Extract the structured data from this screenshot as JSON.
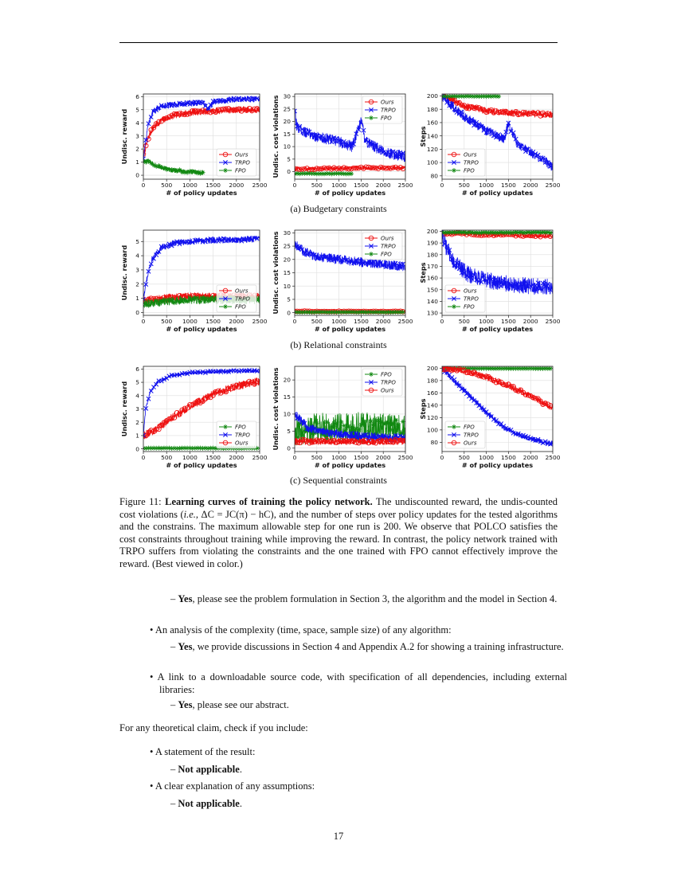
{
  "colors": {
    "ours": "#ee1111",
    "trpo": "#1111ee",
    "fpo": "#118811"
  },
  "figure": {
    "subcaptions": [
      "(a) Budgetary constraints",
      "(b) Relational constraints",
      "(c) Sequential constraints"
    ],
    "caption": {
      "label": "Figure 11:",
      "title": "Learning curves of training the policy network.",
      "text_1": " The undiscounted reward, the undis-counted cost violations (",
      "ie": "i.e.",
      "formula": ", ΔC = JC(π) − hC",
      "text_2": "), and the number of steps over policy updates for the tested algorithms and the constrains. The maximum allowable step for one run is 200. We observe that POLCO satisfies the cost constraints throughout training while improving the reward. In contrast, the policy network trained with TRPO suffers from violating the constraints and the one trained with FPO cannot effectively improve the reward. (Best viewed in color.)"
    }
  },
  "chart_data": [
    {
      "id": "a-reward",
      "type": "line",
      "ylabel": "Undisc. reward",
      "xlabel": "# of policy updates",
      "xlim": [
        0,
        2500
      ],
      "ylim": [
        -0.3,
        6.2
      ],
      "yticks": [
        0,
        1,
        2,
        3,
        4,
        5,
        6
      ],
      "xticks": [
        0,
        500,
        1000,
        1500,
        2000,
        2500
      ],
      "grid": true,
      "legend_position": "lower-right",
      "legend": [
        "Ours",
        "TRPO",
        "FPO"
      ],
      "series": [
        {
          "name": "Ours",
          "color": "ours",
          "marker": "circle",
          "x": [
            0,
            100,
            200,
            400,
            700,
            1000,
            1500,
            2000,
            2500
          ],
          "y": [
            1.5,
            2.8,
            3.6,
            4.2,
            4.6,
            4.8,
            4.9,
            5.0,
            5.0
          ],
          "noise": 0.25
        },
        {
          "name": "TRPO",
          "color": "trpo",
          "marker": "x",
          "x": [
            0,
            100,
            200,
            400,
            700,
            1000,
            1300,
            1400,
            1500,
            2000,
            2500
          ],
          "y": [
            1.2,
            3.8,
            4.8,
            5.3,
            5.4,
            5.5,
            5.5,
            5.0,
            5.6,
            5.8,
            5.8
          ],
          "noise": 0.22
        },
        {
          "name": "FPO",
          "color": "fpo",
          "marker": "star",
          "x": [
            0,
            100,
            300,
            600,
            900,
            1300
          ],
          "y": [
            1.0,
            1.1,
            0.7,
            0.4,
            0.3,
            0.2
          ],
          "noise": 0.18
        }
      ]
    },
    {
      "id": "a-cost",
      "type": "line",
      "ylabel": "Undisc. cost violations",
      "xlabel": "# of policy updates",
      "xlim": [
        0,
        2500
      ],
      "ylim": [
        -3,
        31
      ],
      "yticks": [
        0,
        5,
        10,
        15,
        20,
        25,
        30
      ],
      "xticks": [
        0,
        500,
        1000,
        1500,
        2000,
        2500
      ],
      "grid": true,
      "legend_position": "upper-right",
      "legend": [
        "Ours",
        "TRPO",
        "FPO"
      ],
      "series": [
        {
          "name": "Ours",
          "color": "ours",
          "marker": "circle",
          "x": [
            0,
            500,
            1000,
            1500,
            2000,
            2500
          ],
          "y": [
            1.0,
            1.2,
            1.3,
            1.5,
            1.5,
            1.5
          ],
          "noise": 0.7
        },
        {
          "name": "TRPO",
          "color": "trpo",
          "marker": "x",
          "x": [
            0,
            50,
            200,
            500,
            1000,
            1300,
            1500,
            1600,
            2000,
            2500
          ],
          "y": [
            24,
            18,
            16,
            14,
            12,
            10,
            20,
            12,
            8,
            6
          ],
          "noise": 2.2
        },
        {
          "name": "FPO",
          "color": "fpo",
          "marker": "star",
          "x": [
            0,
            500,
            1000,
            1300
          ],
          "y": [
            -0.8,
            -0.8,
            -0.8,
            -0.8
          ],
          "noise": 0.2
        }
      ]
    },
    {
      "id": "a-steps",
      "type": "line",
      "ylabel": "Steps",
      "xlabel": "# of policy updates",
      "xlim": [
        0,
        2500
      ],
      "ylim": [
        75,
        203
      ],
      "yticks": [
        80,
        100,
        120,
        140,
        160,
        180,
        200
      ],
      "xticks": [
        0,
        500,
        1000,
        1500,
        2000,
        2500
      ],
      "grid": true,
      "legend_position": "lower-left",
      "legend": [
        "Ours",
        "TRPO",
        "FPO"
      ],
      "series": [
        {
          "name": "Ours",
          "color": "ours",
          "marker": "circle",
          "x": [
            0,
            200,
            500,
            1000,
            1500,
            2000,
            2500
          ],
          "y": [
            200,
            195,
            185,
            178,
            175,
            173,
            172
          ],
          "noise": 5
        },
        {
          "name": "TRPO",
          "color": "trpo",
          "marker": "x",
          "x": [
            0,
            300,
            700,
            1000,
            1400,
            1500,
            1700,
            2000,
            2300,
            2500
          ],
          "y": [
            200,
            180,
            160,
            148,
            135,
            158,
            128,
            115,
            103,
            93
          ],
          "noise": 7
        },
        {
          "name": "FPO",
          "color": "fpo",
          "marker": "star",
          "x": [
            0,
            600,
            1300
          ],
          "y": [
            199.5,
            199.5,
            199.5
          ],
          "noise": 0.5
        }
      ]
    },
    {
      "id": "b-reward",
      "type": "line",
      "ylabel": "Undisc. reward",
      "xlabel": "# of policy updates",
      "xlim": [
        0,
        2500
      ],
      "ylim": [
        -0.2,
        5.8
      ],
      "yticks": [
        0,
        1,
        2,
        3,
        4,
        5
      ],
      "xticks": [
        0,
        500,
        1000,
        1500,
        2000,
        2500
      ],
      "grid": true,
      "legend_position": "lower-right",
      "legend": [
        "Ours",
        "TRPO",
        "FPO"
      ],
      "series": [
        {
          "name": "Ours",
          "color": "ours",
          "marker": "circle",
          "x": [
            0,
            500,
            1000,
            1500,
            2000,
            2500
          ],
          "y": [
            0.8,
            1.0,
            1.1,
            1.1,
            1.1,
            1.1
          ],
          "noise": 0.3
        },
        {
          "name": "TRPO",
          "color": "trpo",
          "marker": "x",
          "x": [
            0,
            100,
            200,
            400,
            700,
            1000,
            1500,
            2000,
            2500
          ],
          "y": [
            1.0,
            2.8,
            3.8,
            4.6,
            4.9,
            5.0,
            5.1,
            5.1,
            5.2
          ],
          "noise": 0.22
        },
        {
          "name": "FPO",
          "color": "fpo",
          "marker": "star",
          "x": [
            0,
            500,
            1000,
            1500,
            2000,
            2500
          ],
          "y": [
            0.6,
            0.8,
            0.9,
            0.9,
            0.9,
            0.9
          ],
          "noise": 0.3
        }
      ]
    },
    {
      "id": "b-cost",
      "type": "line",
      "ylabel": "Undisc. cost violations",
      "xlabel": "# of policy updates",
      "xlim": [
        0,
        2500
      ],
      "ylim": [
        -1,
        31
      ],
      "yticks": [
        0,
        5,
        10,
        15,
        20,
        25,
        30
      ],
      "xticks": [
        0,
        500,
        1000,
        1500,
        2000,
        2500
      ],
      "grid": true,
      "legend_position": "upper-right",
      "legend": [
        "Ours",
        "TRPO",
        "FPO"
      ],
      "series": [
        {
          "name": "Ours",
          "color": "ours",
          "marker": "circle",
          "x": [
            0,
            500,
            1000,
            1500,
            2000,
            2500
          ],
          "y": [
            0.6,
            0.5,
            0.5,
            0.5,
            0.5,
            0.5
          ],
          "noise": 0.2
        },
        {
          "name": "TRPO",
          "color": "trpo",
          "marker": "x",
          "x": [
            0,
            200,
            500,
            1000,
            1500,
            2000,
            2500
          ],
          "y": [
            26,
            23,
            21,
            20,
            19,
            18,
            17.5
          ],
          "noise": 1.8
        },
        {
          "name": "FPO",
          "color": "fpo",
          "marker": "star",
          "x": [
            0,
            500,
            1000,
            1500,
            2000,
            2500
          ],
          "y": [
            0.2,
            0.2,
            0.2,
            0.2,
            0.2,
            0.2
          ],
          "noise": 0.1
        }
      ]
    },
    {
      "id": "b-steps",
      "type": "line",
      "ylabel": "Steps",
      "xlabel": "# of policy updates",
      "xlim": [
        0,
        2500
      ],
      "ylim": [
        128,
        201
      ],
      "yticks": [
        130,
        140,
        150,
        160,
        170,
        180,
        190,
        200
      ],
      "xticks": [
        0,
        500,
        1000,
        1500,
        2000,
        2500
      ],
      "grid": true,
      "legend_position": "lower-left",
      "legend": [
        "Ours",
        "TRPO",
        "FPO"
      ],
      "series": [
        {
          "name": "Ours",
          "color": "ours",
          "marker": "circle",
          "x": [
            0,
            500,
            1000,
            1500,
            2000,
            2500
          ],
          "y": [
            198,
            198,
            197,
            197,
            196,
            196
          ],
          "noise": 1.5
        },
        {
          "name": "TRPO",
          "color": "trpo",
          "marker": "x",
          "x": [
            0,
            100,
            300,
            600,
            1000,
            1500,
            2000,
            2500
          ],
          "y": [
            198,
            185,
            172,
            163,
            158,
            155,
            153,
            152
          ],
          "noise": 7
        },
        {
          "name": "FPO",
          "color": "fpo",
          "marker": "star",
          "x": [
            0,
            500,
            1000,
            1500,
            2000,
            2500
          ],
          "y": [
            199,
            199,
            199,
            199,
            199,
            199
          ],
          "noise": 0.8
        }
      ]
    },
    {
      "id": "c-reward",
      "type": "line",
      "ylabel": "Undisc. reward",
      "xlabel": "# of policy updates",
      "xlim": [
        0,
        2500
      ],
      "ylim": [
        -0.2,
        6.2
      ],
      "yticks": [
        0,
        1,
        2,
        3,
        4,
        5,
        6
      ],
      "xticks": [
        0,
        500,
        1000,
        1500,
        2000,
        2500
      ],
      "grid": true,
      "legend_position": "lower-right",
      "legend": [
        "FPO",
        "TRPO",
        "Ours"
      ],
      "series": [
        {
          "name": "Ours",
          "color": "ours",
          "marker": "circle",
          "x": [
            0,
            300,
            600,
            1000,
            1500,
            2000,
            2500
          ],
          "y": [
            1.0,
            1.5,
            2.3,
            3.2,
            4.1,
            4.7,
            5.1
          ],
          "noise": 0.3
        },
        {
          "name": "TRPO",
          "color": "trpo",
          "marker": "x",
          "x": [
            0,
            50,
            150,
            300,
            600,
            1000,
            1500,
            2000,
            2500
          ],
          "y": [
            1.0,
            3.0,
            4.3,
            5.0,
            5.5,
            5.7,
            5.8,
            5.85,
            5.85
          ],
          "noise": 0.12
        },
        {
          "name": "FPO",
          "color": "fpo",
          "marker": "star",
          "x": [
            0,
            2500
          ],
          "y": [
            0.05,
            0.05
          ],
          "noise": 0.03
        }
      ]
    },
    {
      "id": "c-cost",
      "type": "line",
      "ylabel": "Undisc. cost violations",
      "xlabel": "# of policy updates",
      "xlim": [
        0,
        2500
      ],
      "ylim": [
        -1,
        24
      ],
      "yticks": [
        0,
        5,
        10,
        15,
        20
      ],
      "xticks": [
        0,
        500,
        1000,
        1500,
        2000,
        2500
      ],
      "grid": true,
      "legend_position": "upper-right",
      "legend": [
        "FPO",
        "TRPO",
        "Ours"
      ],
      "series": [
        {
          "name": "FPO",
          "color": "fpo",
          "marker": "star",
          "x": [
            0,
            500,
            1000,
            1500,
            2000,
            2500
          ],
          "y": [
            5,
            6,
            6,
            6,
            6,
            6
          ],
          "noise": 4.5
        },
        {
          "name": "TRPO",
          "color": "trpo",
          "marker": "x",
          "x": [
            0,
            300,
            800,
            1500,
            2000,
            2500
          ],
          "y": [
            10,
            6,
            4.5,
            3.5,
            3,
            3
          ],
          "noise": 1.3
        },
        {
          "name": "Ours",
          "color": "ours",
          "marker": "circle",
          "x": [
            0,
            500,
            1000,
            1500,
            2000,
            2500
          ],
          "y": [
            2,
            2,
            2,
            2,
            2,
            2
          ],
          "noise": 1.0
        }
      ]
    },
    {
      "id": "c-steps",
      "type": "line",
      "ylabel": "Steps",
      "xlabel": "# of policy updates",
      "xlim": [
        0,
        2500
      ],
      "ylim": [
        65,
        203
      ],
      "yticks": [
        80,
        100,
        120,
        140,
        160,
        180,
        200
      ],
      "xticks": [
        0,
        500,
        1000,
        1500,
        2000,
        2500
      ],
      "grid": true,
      "legend_position": "lower-left",
      "legend": [
        "FPO",
        "TRPO",
        "Ours"
      ],
      "series": [
        {
          "name": "FPO",
          "color": "fpo",
          "marker": "star",
          "x": [
            0,
            2500
          ],
          "y": [
            199.5,
            199.5
          ],
          "noise": 0.3
        },
        {
          "name": "TRPO",
          "color": "trpo",
          "marker": "x",
          "x": [
            0,
            300,
            700,
            1000,
            1400,
            1800,
            2200,
            2500
          ],
          "y": [
            200,
            178,
            150,
            128,
            104,
            90,
            82,
            78
          ],
          "noise": 4
        },
        {
          "name": "Ours",
          "color": "ours",
          "marker": "circle",
          "x": [
            0,
            300,
            700,
            1000,
            1500,
            2000,
            2500
          ],
          "y": [
            200,
            198,
            192,
            185,
            172,
            155,
            135
          ],
          "noise": 5
        }
      ]
    }
  ],
  "checklist": {
    "items": [
      {
        "level": 2,
        "bold": "Yes",
        "text": ", please see the problem formulation in Section 3, the algorithm and the model in Section 4."
      },
      {
        "level": 1,
        "bold": "",
        "text": "An analysis of the complexity (time, space, sample size) of any algorithm:"
      },
      {
        "level": 2,
        "bold": "Yes",
        "text": ", we provide discussions in Section 4 and Appendix A.2 for showing a training infrastructure."
      },
      {
        "level": 1,
        "bold": "",
        "text": "A link to a downloadable source code, with specification of all dependencies, including external libraries:"
      },
      {
        "level": 2,
        "bold": "Yes",
        "text": ", please see our abstract."
      }
    ],
    "theory_intro": "For any theoretical claim, check if you include:",
    "theory_items": [
      {
        "level": 1,
        "bold": "",
        "text": "A statement of the result:"
      },
      {
        "level": 2,
        "bold": "Not applicable",
        "text": "."
      },
      {
        "level": 1,
        "bold": "",
        "text": "A clear explanation of any assumptions:"
      },
      {
        "level": 2,
        "bold": "Not applicable",
        "text": "."
      }
    ]
  },
  "page_number": "17"
}
